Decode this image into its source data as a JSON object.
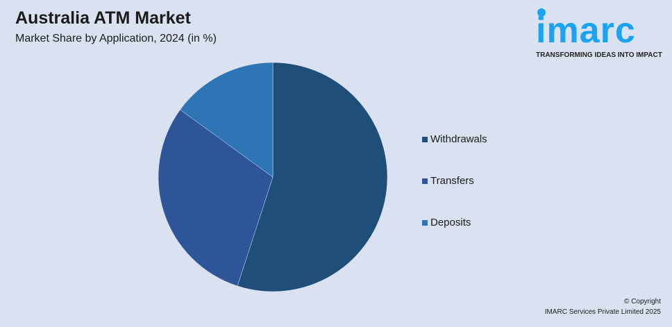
{
  "header": {
    "title": "Australia ATM Market",
    "subtitle": "Market Share by Application, 2024 (in %)"
  },
  "logo": {
    "word": "imarc",
    "tagline": "TRANSFORMING IDEAS INTO IMPACT",
    "color": "#1aa3f0"
  },
  "chart_data": {
    "type": "pie",
    "title": "Australia ATM Market",
    "subtitle": "Market Share by Application, 2024 (in %)",
    "categories": [
      "Withdrawals",
      "Transfers",
      "Deposits"
    ],
    "values": [
      55,
      30,
      15
    ],
    "colors": [
      "#1f4e79",
      "#2e5597",
      "#2e75b6"
    ],
    "legend": "right"
  },
  "footer": {
    "copyright": "© Copyright",
    "company": "IMARC Services Private Limited 2025"
  }
}
